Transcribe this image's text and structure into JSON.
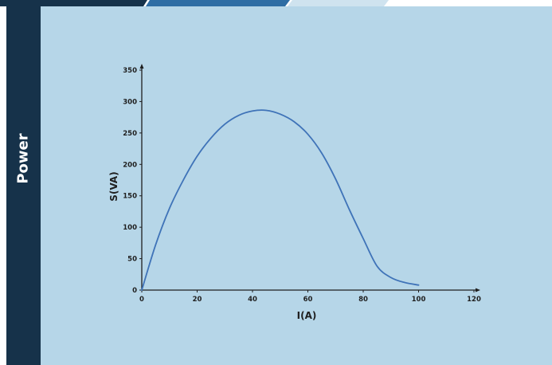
{
  "sidebar": {
    "label": "Power"
  },
  "colors": {
    "sidebar_bg": "#16324a",
    "panel_bg": "#b6d6e8",
    "line": "#3f73b8",
    "axis": "#1f1f1f"
  },
  "chart_data": {
    "type": "line",
    "xlabel": "I(A)",
    "ylabel": "S(VA)",
    "xlim": [
      0,
      120
    ],
    "ylim": [
      0,
      350
    ],
    "xticks": [
      0,
      20,
      40,
      60,
      80,
      100,
      120
    ],
    "yticks": [
      0,
      50,
      100,
      150,
      200,
      250,
      300,
      350
    ],
    "grid": false,
    "series": [
      {
        "x": [
          0,
          5,
          10,
          15,
          20,
          25,
          30,
          35,
          40,
          45,
          50,
          55,
          60,
          65,
          70,
          75,
          80,
          85,
          90,
          95,
          100
        ],
        "y": [
          0,
          72,
          130,
          175,
          213,
          242,
          264,
          278,
          285,
          286,
          280,
          268,
          248,
          218,
          177,
          128,
          82,
          38,
          20,
          12,
          8
        ]
      }
    ]
  }
}
